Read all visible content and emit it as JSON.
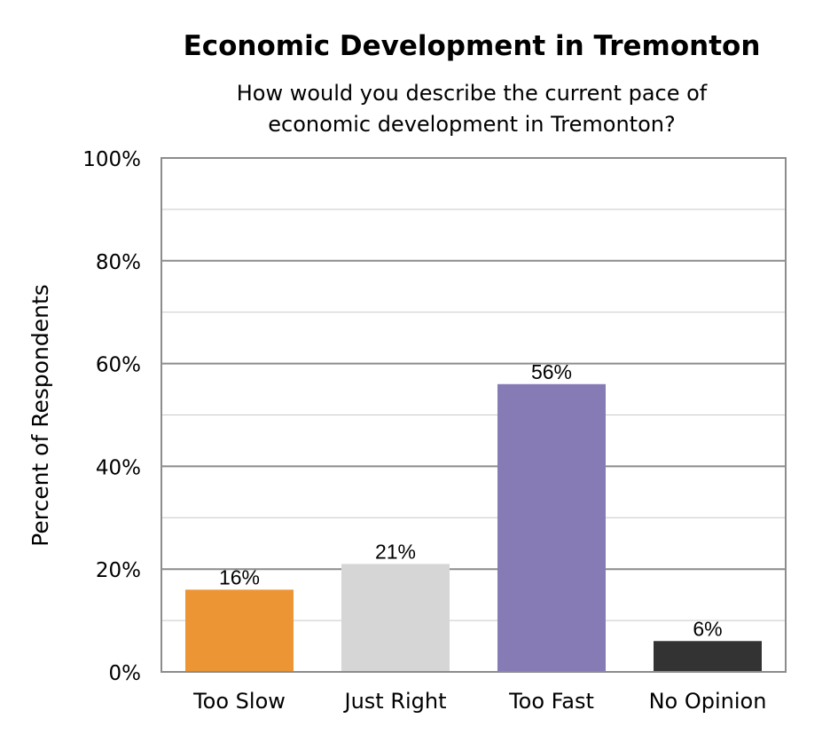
{
  "chart_data": {
    "type": "bar",
    "title": "Economic Development in Tremonton",
    "subtitle": [
      "How would you describe the current pace of",
      "economic development in Tremonton?"
    ],
    "xlabel": "",
    "ylabel": "Percent of Respondents",
    "ylim": [
      0,
      100
    ],
    "yticks": [
      0,
      20,
      40,
      60,
      80,
      100
    ],
    "ytick_labels": [
      "0%",
      "20%",
      "40%",
      "60%",
      "80%",
      "100%"
    ],
    "minor_grid_step": 10,
    "grid": true,
    "categories": [
      "Too Slow",
      "Just Right",
      "Too Fast",
      "No Opinion"
    ],
    "values": [
      16,
      21,
      56,
      6
    ],
    "value_labels": [
      "16%",
      "21%",
      "56%",
      "6%"
    ],
    "colors": [
      "#ec9534",
      "#d6d6d6",
      "#877bb5",
      "#333333"
    ],
    "legend": "none"
  }
}
